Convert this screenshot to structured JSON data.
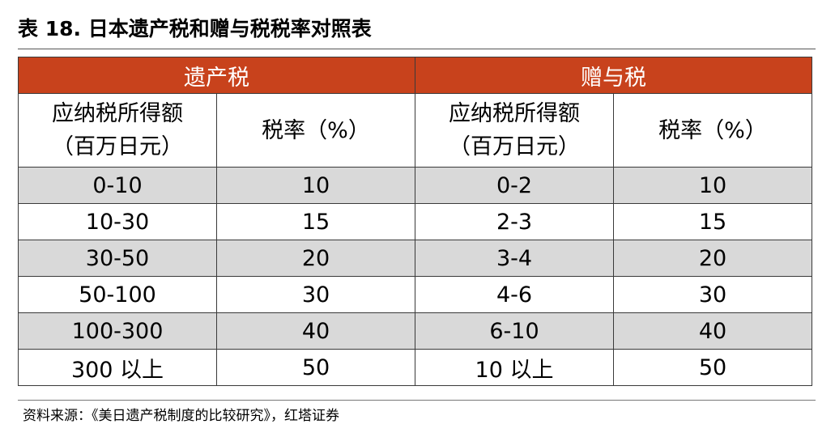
{
  "title": "表 18. 日本遗产税和赠与税税率对照表",
  "groups": {
    "inheritance": "遗产税",
    "gift": "赠与税"
  },
  "column_headers": {
    "inheritance_bracket_line1": "应纳税所得额",
    "inheritance_bracket_line2": "（百万日元）",
    "inheritance_rate": "税率（%）",
    "gift_bracket_line1": "应纳税所得额",
    "gift_bracket_line2": "（百万日元）",
    "gift_rate": "税率（%）"
  },
  "rows": [
    {
      "inheritance_bracket": "0-10",
      "inheritance_rate": "10",
      "gift_bracket": "0-2",
      "gift_rate": "10"
    },
    {
      "inheritance_bracket": "10-30",
      "inheritance_rate": "15",
      "gift_bracket": "2-3",
      "gift_rate": "15"
    },
    {
      "inheritance_bracket": "30-50",
      "inheritance_rate": "20",
      "gift_bracket": "3-4",
      "gift_rate": "20"
    },
    {
      "inheritance_bracket": "50-100",
      "inheritance_rate": "30",
      "gift_bracket": "4-6",
      "gift_rate": "30"
    },
    {
      "inheritance_bracket": "100-300",
      "inheritance_rate": "40",
      "gift_bracket": "6-10",
      "gift_rate": "40"
    },
    {
      "inheritance_bracket": "300 以上",
      "inheritance_rate": "50",
      "gift_bracket": "10 以上",
      "gift_rate": "50"
    }
  ],
  "source": "资料来源：《美日遗产税制度的比较研究》，红塔证券",
  "colors": {
    "header_background": "#c8421c",
    "shaded_row": "#d9d9d9"
  }
}
